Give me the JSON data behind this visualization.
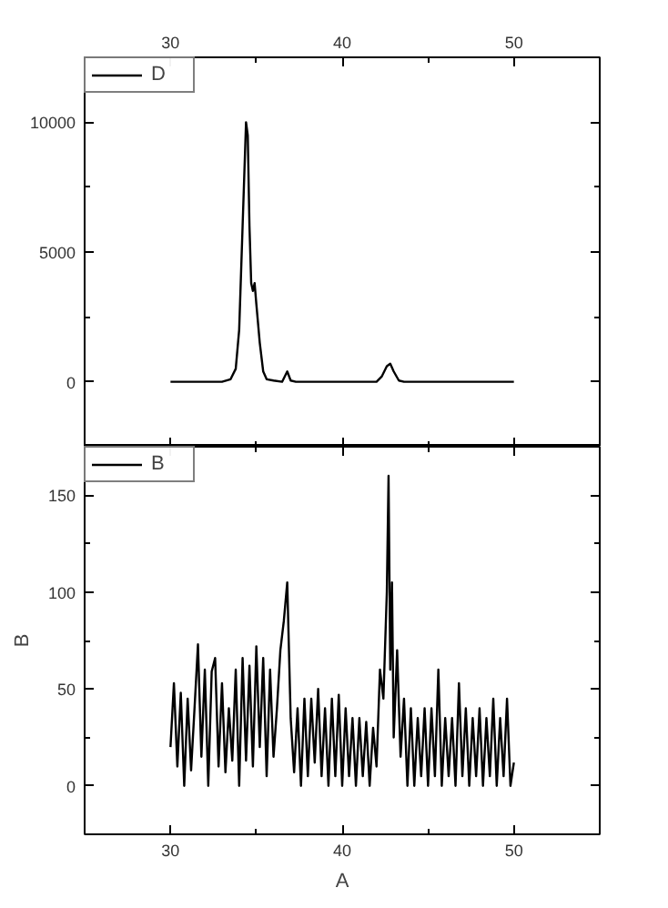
{
  "chart_data": [
    {
      "type": "line",
      "xlim": [
        25,
        55
      ],
      "xticks": [
        30,
        40,
        50
      ],
      "ylim": [
        -2500,
        12500
      ],
      "yticks": [
        0,
        5000,
        10000
      ],
      "legend": "top left",
      "grid": false,
      "series": [
        {
          "name": "D",
          "color": "#000000",
          "x": [
            30,
            33,
            33.5,
            33.8,
            34.0,
            34.2,
            34.4,
            34.5,
            34.6,
            34.7,
            34.8,
            34.9,
            35.0,
            35.2,
            35.4,
            35.6,
            36.0,
            36.5,
            36.8,
            37.0,
            37.3,
            42.0,
            42.3,
            42.6,
            42.8,
            43.0,
            43.3,
            43.6,
            50
          ],
          "values": [
            0,
            0,
            100,
            500,
            2000,
            6000,
            10000,
            9500,
            6000,
            3800,
            3500,
            3800,
            3000,
            1500,
            400,
            100,
            50,
            0,
            400,
            50,
            0,
            0,
            200,
            600,
            700,
            400,
            50,
            0,
            0
          ]
        }
      ]
    },
    {
      "type": "line",
      "xlim": [
        25,
        55
      ],
      "xticks": [
        30,
        40,
        50
      ],
      "ylim": [
        -25,
        175
      ],
      "yticks": [
        0,
        50,
        100,
        150
      ],
      "xlabel": "A",
      "ylabel": "B",
      "legend": "top left",
      "grid": false,
      "series": [
        {
          "name": "B",
          "color": "#000000",
          "x": [
            30.0,
            30.2,
            30.4,
            30.6,
            30.8,
            31.0,
            31.2,
            31.4,
            31.6,
            31.8,
            32.0,
            32.2,
            32.4,
            32.6,
            32.8,
            33.0,
            33.2,
            33.4,
            33.6,
            33.8,
            34.0,
            34.2,
            34.4,
            34.6,
            34.8,
            35.0,
            35.2,
            35.4,
            35.6,
            35.8,
            36.0,
            36.2,
            36.4,
            36.6,
            36.8,
            37.0,
            37.2,
            37.4,
            37.6,
            37.8,
            38.0,
            38.2,
            38.4,
            38.6,
            38.8,
            39.0,
            39.2,
            39.4,
            39.6,
            39.8,
            40.0,
            40.2,
            40.4,
            40.6,
            40.8,
            41.0,
            41.2,
            41.4,
            41.6,
            41.8,
            42.0,
            42.2,
            42.4,
            42.6,
            42.7,
            42.8,
            42.9,
            43.0,
            43.2,
            43.4,
            43.6,
            43.8,
            44.0,
            44.2,
            44.4,
            44.6,
            44.8,
            45.0,
            45.2,
            45.4,
            45.6,
            45.8,
            46.0,
            46.2,
            46.4,
            46.6,
            46.8,
            47.0,
            47.2,
            47.4,
            47.6,
            47.8,
            48.0,
            48.2,
            48.4,
            48.6,
            48.8,
            49.0,
            49.2,
            49.4,
            49.6,
            49.8,
            50.0
          ],
          "values": [
            20,
            53,
            10,
            48,
            0,
            45,
            8,
            40,
            73,
            15,
            60,
            0,
            59,
            66,
            10,
            53,
            7,
            40,
            13,
            60,
            0,
            66,
            13,
            62,
            10,
            72,
            20,
            66,
            5,
            60,
            15,
            40,
            70,
            85,
            105,
            35,
            7,
            40,
            0,
            45,
            5,
            45,
            12,
            50,
            5,
            40,
            0,
            45,
            5,
            47,
            0,
            40,
            5,
            35,
            0,
            35,
            5,
            33,
            0,
            30,
            10,
            60,
            45,
            100,
            160,
            60,
            105,
            25,
            70,
            15,
            45,
            0,
            40,
            0,
            35,
            5,
            40,
            0,
            40,
            5,
            60,
            0,
            35,
            5,
            35,
            0,
            53,
            5,
            40,
            0,
            35,
            5,
            40,
            0,
            35,
            5,
            45,
            0,
            35,
            5,
            45,
            0,
            12
          ]
        }
      ]
    }
  ]
}
